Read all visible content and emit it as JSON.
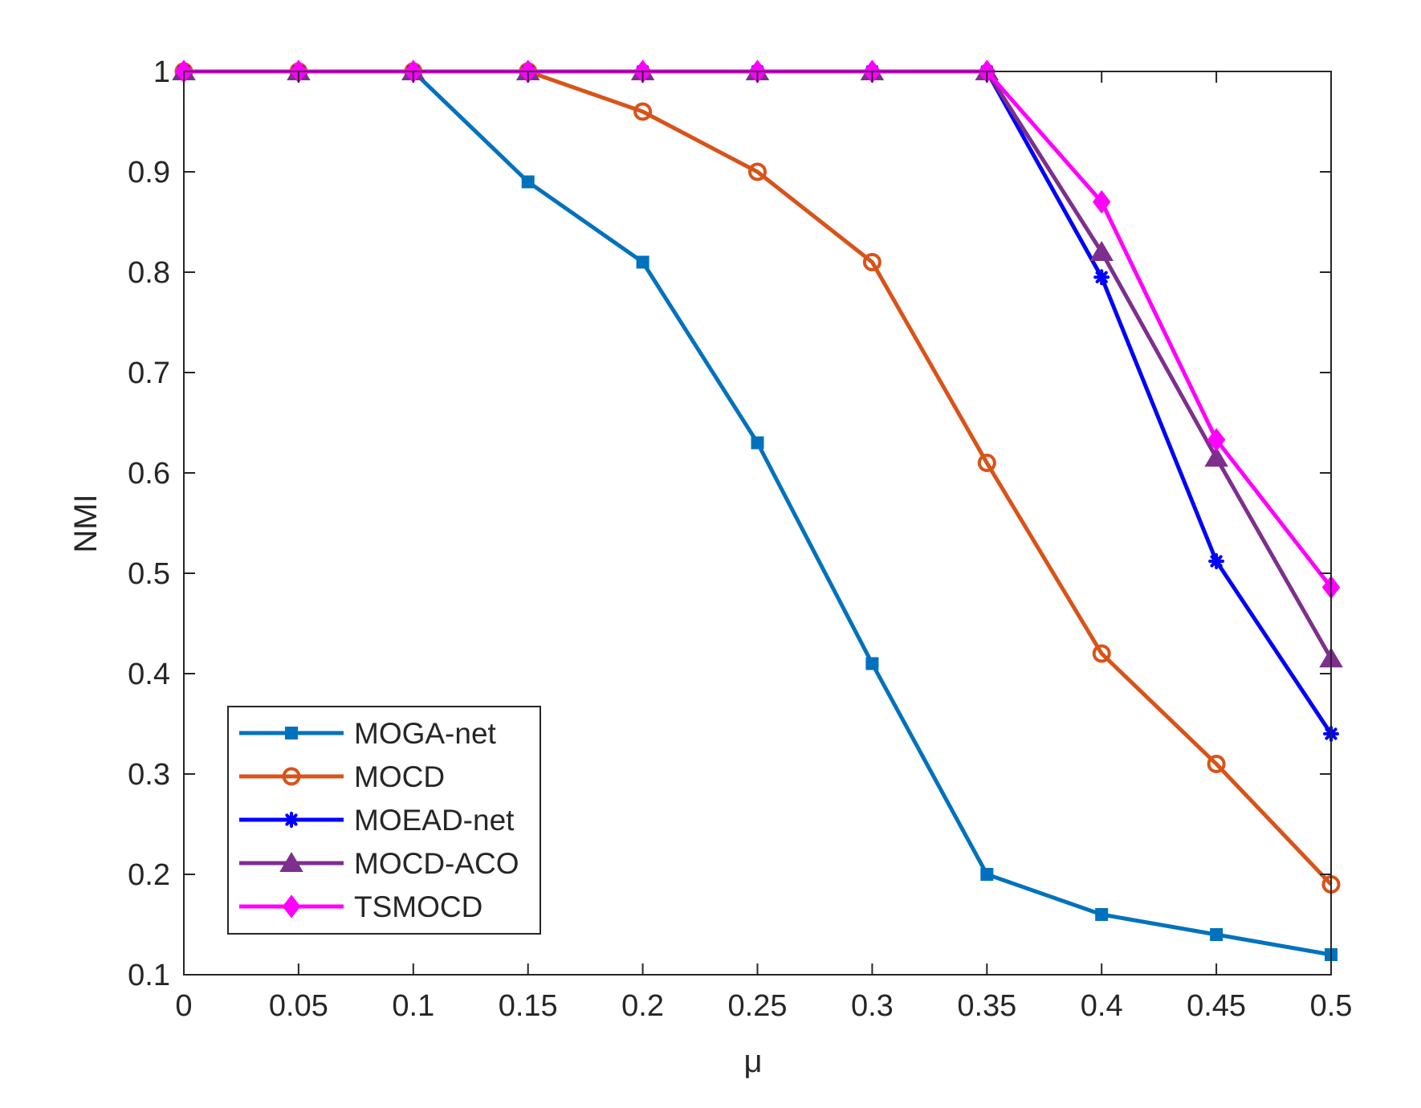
{
  "chart_data": {
    "type": "line",
    "title": "",
    "xlabel": "μ",
    "ylabel": "NMI",
    "xlim": [
      0,
      0.5
    ],
    "ylim": [
      0.1,
      1
    ],
    "x": [
      0,
      0.05,
      0.1,
      0.15,
      0.2,
      0.25,
      0.3,
      0.35,
      0.4,
      0.45,
      0.5
    ],
    "xticks": [
      "0",
      "0.05",
      "0.1",
      "0.15",
      "0.2",
      "0.25",
      "0.3",
      "0.35",
      "0.4",
      "0.45",
      "0.5"
    ],
    "yticks": [
      "0.1",
      "0.2",
      "0.3",
      "0.4",
      "0.5",
      "0.6",
      "0.7",
      "0.8",
      "0.9",
      "1"
    ],
    "ytick_values": [
      0.1,
      0.2,
      0.3,
      0.4,
      0.5,
      0.6,
      0.7,
      0.8,
      0.9,
      1
    ],
    "grid": false,
    "legend_position": "bottom-left",
    "series": [
      {
        "name": "MOGA-net",
        "color": "#0072BD",
        "marker": "square",
        "values": [
          1,
          1,
          1,
          0.89,
          0.81,
          0.63,
          0.41,
          0.2,
          0.16,
          0.14,
          0.12
        ]
      },
      {
        "name": "MOCD",
        "color": "#D95319",
        "marker": "circle",
        "values": [
          1,
          1,
          1,
          1,
          0.96,
          0.9,
          0.81,
          0.61,
          0.42,
          0.31,
          0.19
        ]
      },
      {
        "name": "MOEAD-net",
        "color": "#0000FF",
        "marker": "star",
        "values": [
          1,
          1,
          1,
          1,
          1,
          1,
          1,
          1,
          0.795,
          0.512,
          0.34
        ]
      },
      {
        "name": "MOCD-ACO",
        "color": "#7E2F8E",
        "marker": "triangle",
        "values": [
          1,
          1,
          1,
          1,
          1,
          1,
          1,
          1,
          0.82,
          0.615,
          0.415
        ]
      },
      {
        "name": "TSMOCD",
        "color": "#FF00FF",
        "marker": "diamond",
        "values": [
          1,
          1,
          1,
          1,
          1,
          1,
          1,
          1,
          0.87,
          0.633,
          0.486
        ]
      }
    ]
  }
}
